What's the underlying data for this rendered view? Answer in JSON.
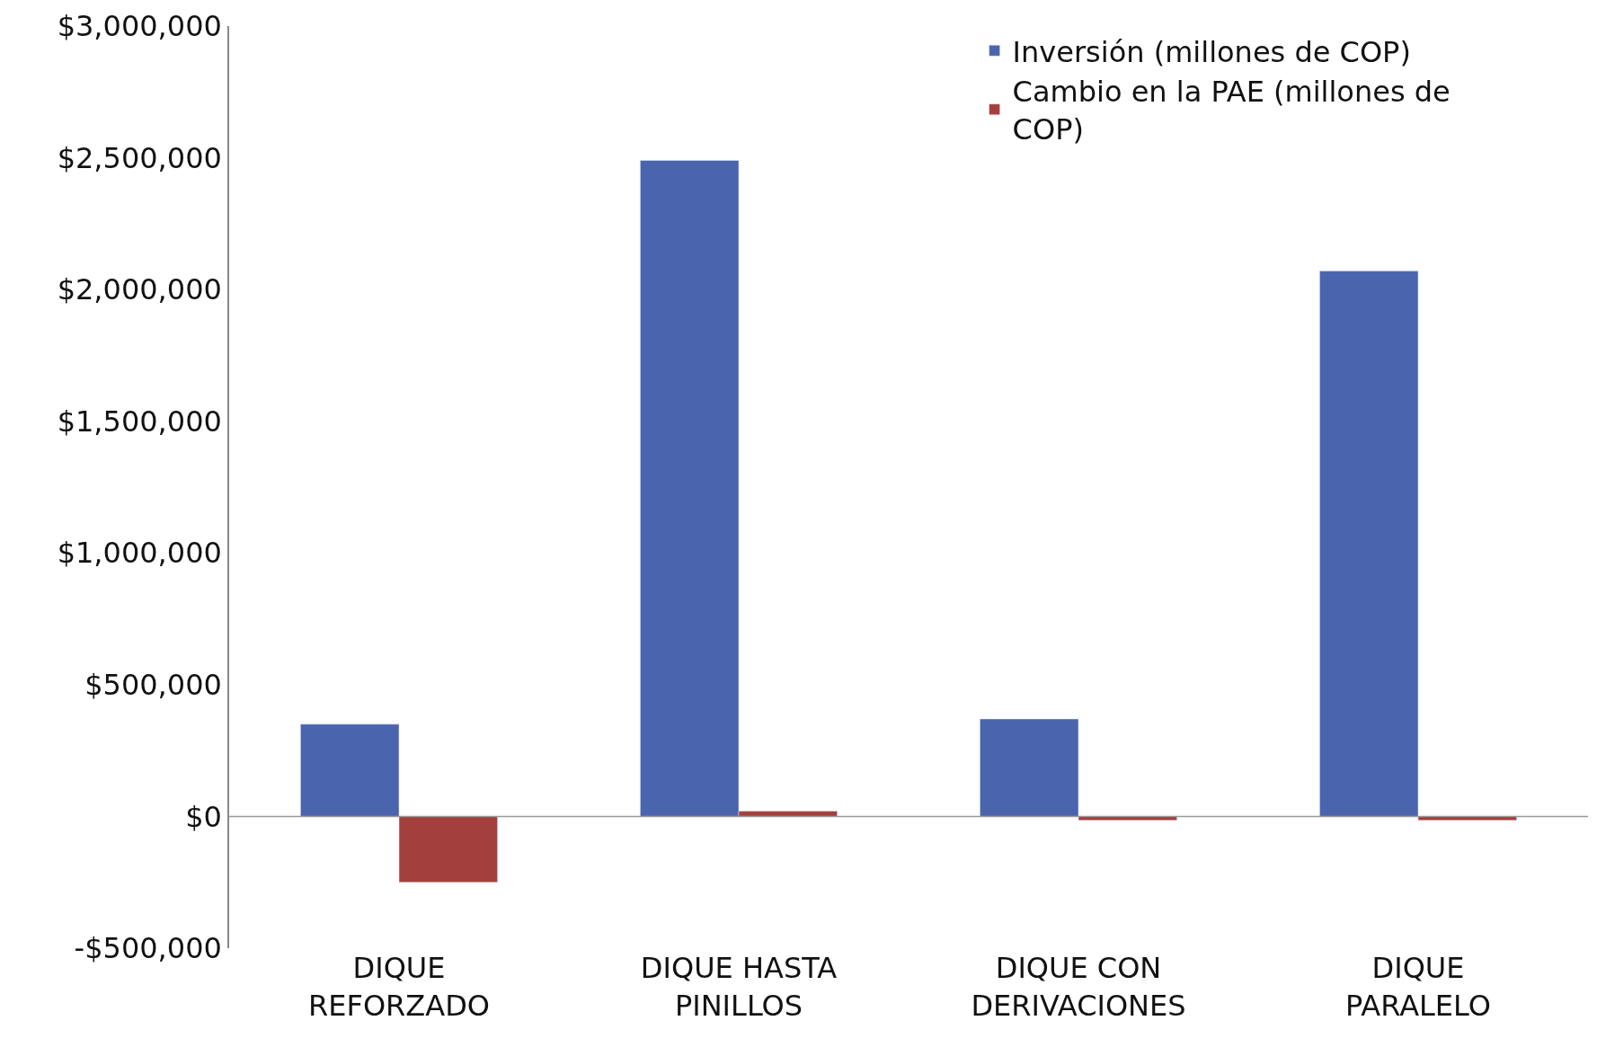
{
  "chart_data": {
    "type": "bar",
    "categories": [
      "DIQUE REFORZADO",
      "DIQUE HASTA PINILLOS",
      "DIQUE CON DERIVACIONES",
      "DIQUE PARALELO"
    ],
    "series": [
      {
        "name": "Inversión (millones de COP)",
        "color": "#4a64ae",
        "values": [
          350000,
          2490000,
          370000,
          2070000
        ]
      },
      {
        "name": "Cambio en la PAE (millones de COP)",
        "color": "#a33f3c",
        "values": [
          -250000,
          20000,
          -15000,
          -15000
        ]
      }
    ],
    "ylim": [
      -500000,
      3000000
    ],
    "yticks": [
      {
        "value": -500000,
        "label": "-$500,000"
      },
      {
        "value": 0,
        "label": "$0"
      },
      {
        "value": 500000,
        "label": "$500,000"
      },
      {
        "value": 1000000,
        "label": "$1,000,000"
      },
      {
        "value": 1500000,
        "label": "$1,500,000"
      },
      {
        "value": 2000000,
        "label": "$2,000,000"
      },
      {
        "value": 2500000,
        "label": "$2,500,000"
      },
      {
        "value": 3000000,
        "label": "$3,000,000"
      }
    ],
    "legend": "top right"
  }
}
